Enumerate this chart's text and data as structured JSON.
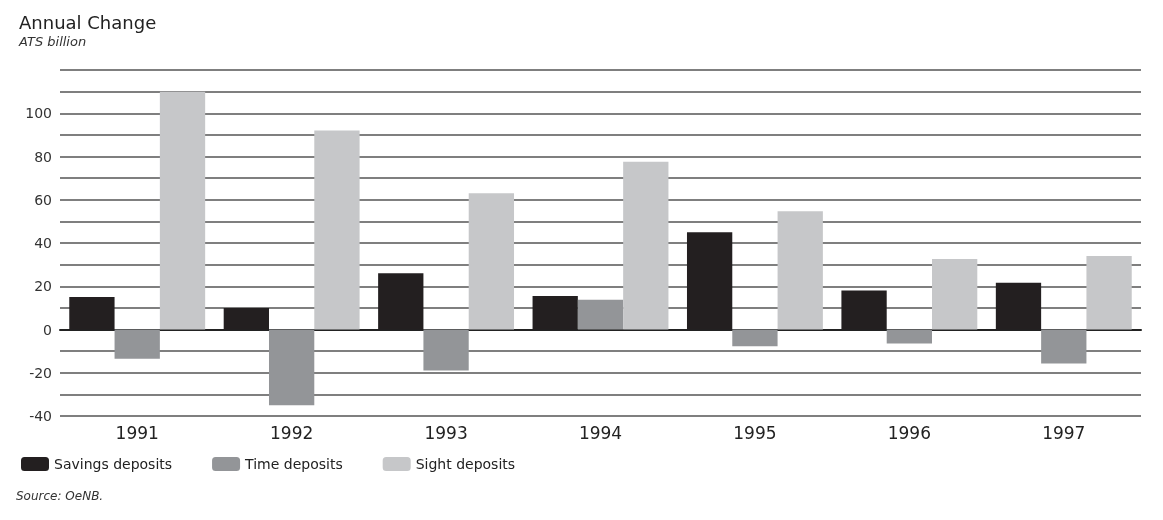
{
  "chart_data": {
    "type": "bar",
    "title": "Annual Change",
    "subtitle": "ATS billion",
    "categories": [
      "1991",
      "1992",
      "1993",
      "1994",
      "1995",
      "1996",
      "1997"
    ],
    "series": [
      {
        "name": "Savings deposits",
        "color": "#231f20",
        "values": [
          15,
          10,
          26,
          15.5,
          45,
          18,
          21.6
        ]
      },
      {
        "name": "Time deposits",
        "color": "#939598",
        "values": [
          -13.5,
          -35,
          -19,
          13.7,
          -7.8,
          -6.5,
          -15.7
        ]
      },
      {
        "name": "Sight deposits",
        "color": "#c6c7c9",
        "values": [
          110,
          92,
          63,
          77.6,
          54.7,
          32.6,
          34
        ]
      }
    ],
    "ylim": [
      -40,
      120
    ],
    "yticks": [
      -40,
      {
        "value": -30,
        "label": null
      },
      -20,
      {
        "value": -10,
        "label": null
      },
      0,
      {
        "value": 10,
        "label": null
      },
      20,
      {
        "value": 30,
        "label": null
      },
      40,
      {
        "value": 50,
        "label": null
      },
      60,
      {
        "value": 70,
        "label": null
      },
      80,
      {
        "value": 90,
        "label": null
      },
      100,
      {
        "value": 110,
        "label": null
      },
      {
        "value": 120,
        "label": null
      }
    ],
    "grid": "y",
    "legend": "bottom left",
    "annotations": [
      "Source: OeNB."
    ]
  }
}
